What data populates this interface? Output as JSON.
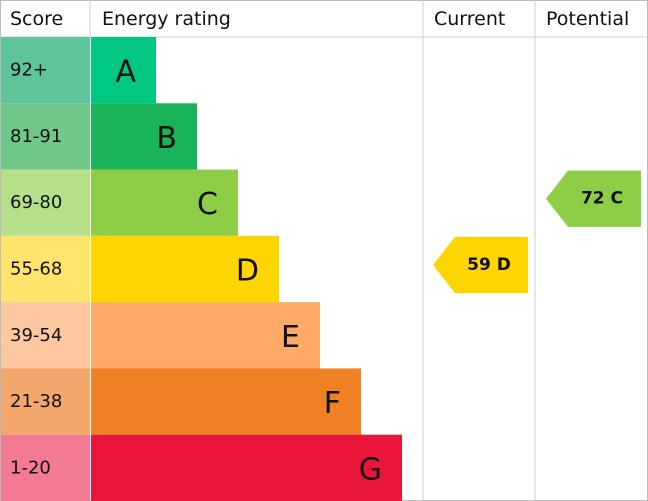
{
  "header": {
    "score": "Score",
    "rating": "Energy rating",
    "current": "Current",
    "potential": "Potential"
  },
  "rows": [
    {
      "score": "92+",
      "rating": "A",
      "color": "#00c781",
      "score_color": "#5ec49a"
    },
    {
      "score": "81-91",
      "rating": "B",
      "color": "#19b459",
      "score_color": "#70c78a"
    },
    {
      "score": "69-80",
      "rating": "C",
      "color": "#8dce46",
      "score_color": "#b6df8b",
      "potential": "72 C"
    },
    {
      "score": "55-68",
      "rating": "D",
      "color": "#ffd500",
      "score_color": "#fee46b",
      "current": "59 D"
    },
    {
      "score": "39-54",
      "rating": "E",
      "color": "#fcaa65",
      "score_color": "#fdc8a0"
    },
    {
      "score": "21-38",
      "rating": "F",
      "color": "#ef8023",
      "score_color": "#f3a76c"
    },
    {
      "score": "1-20",
      "rating": "G",
      "color": "#e9153b",
      "score_color": "#f27b92"
    }
  ]
}
